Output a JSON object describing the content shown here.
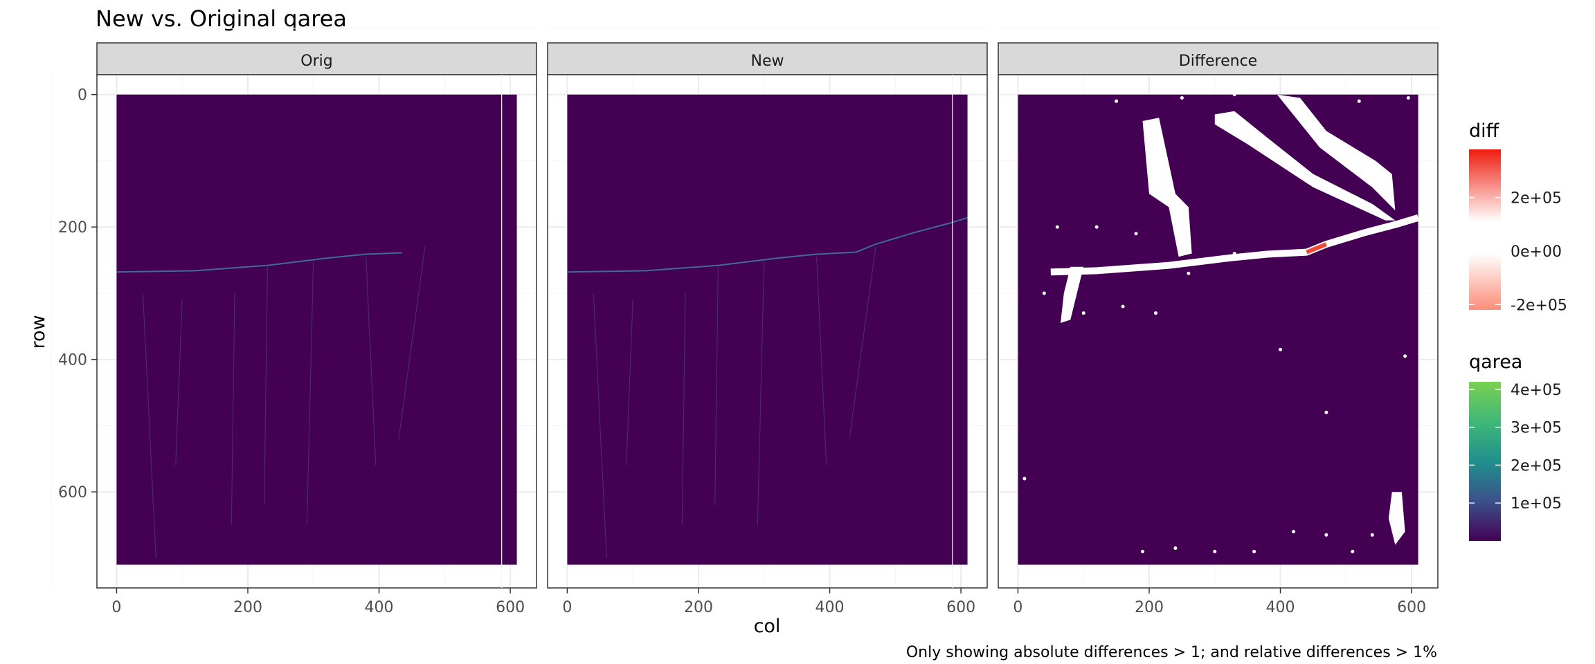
{
  "title": "New vs. Original qarea",
  "caption": "Only showing absolute differences > 1; and relative differences > 1%",
  "colors": {
    "background": "#ffffff",
    "panel_background": "#ffffff",
    "strip_fill": "#d9d9d9",
    "strip_border": "#333333",
    "grid_major": "#ebebeb",
    "grid_minor": "#f5f5f5",
    "raster_fill": "#440154",
    "mask_fill": "#ffffff",
    "diff_low": "#fc8d7a",
    "diff_mid": "#ffffff",
    "diff_high": "#ee1c0e"
  },
  "chart_data": {
    "type": "heatmap",
    "x_label": "col",
    "y_label": "row",
    "x_ticks": [
      "0",
      "200",
      "400",
      "600"
    ],
    "y_ticks": [
      "0",
      "200",
      "400",
      "600"
    ],
    "x_range": [
      -30,
      640
    ],
    "y_range_reversed": [
      -30,
      745
    ],
    "raster_extent": {
      "col": [
        0,
        610
      ],
      "row": [
        0,
        710
      ]
    },
    "panels": [
      {
        "name": "Orig",
        "main_channel": [
          [
            0,
            268
          ],
          [
            120,
            266
          ],
          [
            230,
            258
          ],
          [
            320,
            247
          ],
          [
            380,
            241
          ],
          [
            435,
            239
          ]
        ]
      },
      {
        "name": "New",
        "main_channel": [
          [
            0,
            268
          ],
          [
            120,
            266
          ],
          [
            230,
            258
          ],
          [
            320,
            247
          ],
          [
            380,
            241
          ],
          [
            440,
            238
          ],
          [
            470,
            226
          ],
          [
            530,
            208
          ],
          [
            580,
            195
          ],
          [
            610,
            186
          ]
        ]
      },
      {
        "name": "Difference",
        "main_channel": [
          [
            50,
            268
          ],
          [
            120,
            266
          ],
          [
            230,
            258
          ],
          [
            320,
            247
          ],
          [
            380,
            241
          ],
          [
            440,
            238
          ],
          [
            470,
            226
          ],
          [
            530,
            208
          ],
          [
            580,
            195
          ],
          [
            610,
            186
          ]
        ]
      }
    ],
    "legends": [
      {
        "title": "diff",
        "type": "continuous",
        "labels": [
          "2e+05",
          "0e+00",
          "-2e+05"
        ],
        "values": [
          200000,
          0,
          -200000
        ],
        "range": [
          -220000,
          380000
        ]
      },
      {
        "title": "qarea",
        "type": "continuous",
        "labels": [
          "4e+05",
          "3e+05",
          "2e+05",
          "1e+05"
        ],
        "values": [
          400000,
          300000,
          200000,
          100000
        ],
        "range": [
          0,
          420000
        ],
        "colors": [
          "#440154",
          "#3b528b",
          "#21908d",
          "#5dc963",
          "#7ad151"
        ]
      }
    ]
  }
}
